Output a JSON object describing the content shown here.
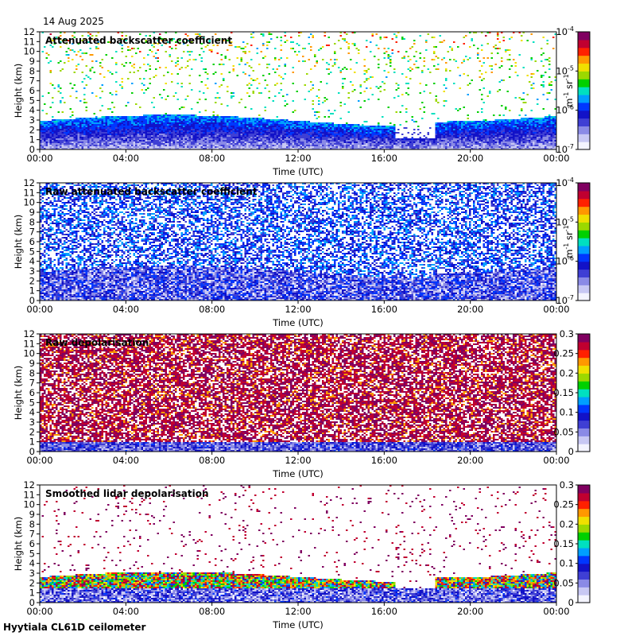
{
  "header": {
    "date": "14 Aug 2025"
  },
  "footer": {
    "site": "Hyytiala CL61D ceilometer"
  },
  "chart_data": [
    {
      "type": "heatmap",
      "title": "Attenuated backscatter coefficient",
      "xlabel": "Time (UTC)",
      "ylabel": "Height (km)",
      "x_ticks": [
        "00:00",
        "04:00",
        "08:00",
        "12:00",
        "16:00",
        "20:00",
        "00:00"
      ],
      "y_ticks": [
        "0",
        "1",
        "2",
        "3",
        "4",
        "5",
        "6",
        "7",
        "8",
        "9",
        "10",
        "11",
        "12"
      ],
      "ylim": [
        0,
        12
      ],
      "colorbar": {
        "scale": "log",
        "range": [
          1e-07,
          0.0001
        ],
        "ticks": [
          "10-7",
          "10-6",
          "10-5",
          "10-4"
        ],
        "unit": "m-1 sr-1"
      },
      "features": {
        "boundary_layer_top_km": 3.5,
        "clear_gap_utc": [
          16.5,
          18.3
        ],
        "cloud_patches": [
          {
            "x_utc": 6.2,
            "h_km": 5.5
          },
          {
            "x_utc": 10.5,
            "h_km": 5.5
          },
          {
            "x_utc": 15.8,
            "h_km": 6.2
          }
        ]
      }
    },
    {
      "type": "heatmap",
      "title": "Raw attenuated backscatter coefficient",
      "xlabel": "Time (UTC)",
      "ylabel": "Height (km)",
      "x_ticks": [
        "00:00",
        "04:00",
        "08:00",
        "12:00",
        "16:00",
        "20:00",
        "00:00"
      ],
      "y_ticks": [
        "0",
        "1",
        "2",
        "3",
        "4",
        "5",
        "6",
        "7",
        "8",
        "9",
        "10",
        "11",
        "12"
      ],
      "ylim": [
        0,
        12
      ],
      "colorbar": {
        "scale": "log",
        "range": [
          1e-07,
          0.0001
        ],
        "ticks": [
          "10-7",
          "10-6",
          "10-5",
          "10-4"
        ],
        "unit": "m-1 sr-1"
      }
    },
    {
      "type": "heatmap",
      "title": "Raw depolarisation",
      "xlabel": "Time (UTC)",
      "ylabel": "Height (km)",
      "x_ticks": [
        "00:00",
        "04:00",
        "08:00",
        "12:00",
        "16:00",
        "20:00",
        "00:00"
      ],
      "y_ticks": [
        "0",
        "1",
        "2",
        "3",
        "4",
        "5",
        "6",
        "7",
        "8",
        "9",
        "10",
        "11",
        "12"
      ],
      "ylim": [
        0,
        12
      ],
      "colorbar": {
        "scale": "linear",
        "range": [
          0,
          0.3
        ],
        "ticks": [
          "0",
          "0.05",
          "0.1",
          "0.15",
          "0.2",
          "0.25",
          "0.3"
        ],
        "unit": ""
      }
    },
    {
      "type": "heatmap",
      "title": "Smoothed lidar depolarisation",
      "xlabel": "Time (UTC)",
      "ylabel": "Height (km)",
      "x_ticks": [
        "00:00",
        "04:00",
        "08:00",
        "12:00",
        "16:00",
        "20:00",
        "00:00"
      ],
      "y_ticks": [
        "0",
        "1",
        "2",
        "3",
        "4",
        "5",
        "6",
        "7",
        "8",
        "9",
        "10",
        "11",
        "12"
      ],
      "ylim": [
        0,
        12
      ],
      "colorbar": {
        "scale": "linear",
        "range": [
          0,
          0.3
        ],
        "ticks": [
          "0",
          "0.05",
          "0.1",
          "0.15",
          "0.2",
          "0.25",
          "0.3"
        ],
        "unit": ""
      }
    }
  ],
  "colormap": [
    "#f4f4ff",
    "#c8c8f4",
    "#8a8ae6",
    "#3f3fd4",
    "#1212c8",
    "#0037ff",
    "#009fff",
    "#00e0c0",
    "#00d000",
    "#9cd800",
    "#f0e000",
    "#ff9800",
    "#ff2000",
    "#c00030",
    "#800060"
  ]
}
